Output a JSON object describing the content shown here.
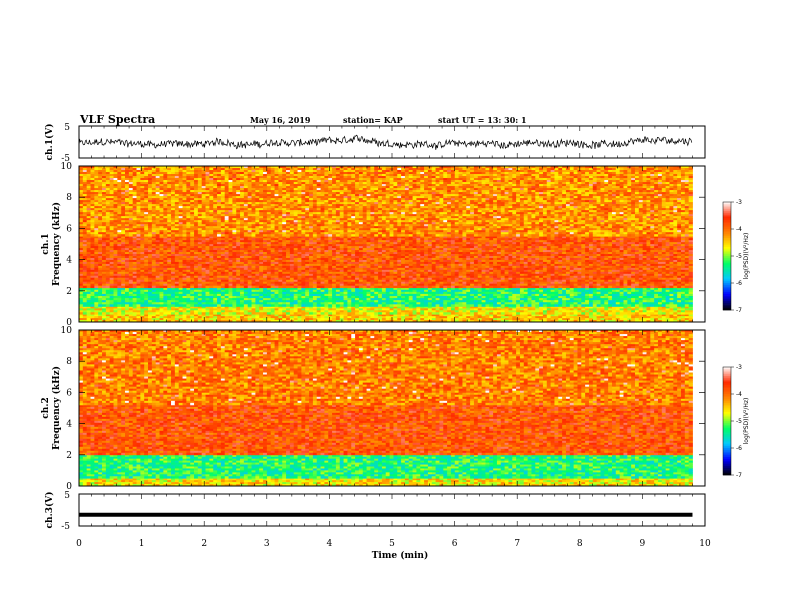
{
  "header": {
    "title": "VLF Spectra",
    "date": "May 16, 2019",
    "station": "station= KAP",
    "start": "start  UT =   13: 30: 1"
  },
  "colors": {
    "spectrogram_scale": [
      "#000000",
      "#0000ff",
      "#00c8ff",
      "#00ff66",
      "#ffff00",
      "#ff8000",
      "#ff2a00",
      "#ffffff"
    ],
    "waveform": "#000000"
  },
  "chart_data": [
    {
      "type": "line",
      "name": "ch1-waveform",
      "ylabel": "ch.1(V)",
      "ylim": [
        -5,
        5
      ],
      "yticks": [
        "5",
        "-5"
      ],
      "x_range_min": [
        0,
        9.8
      ],
      "description_values": "noisy waveform around approximately -0.5 V with amplitude about ±1.5 V"
    },
    {
      "type": "heatmap",
      "name": "ch1-spectrogram",
      "ylabel": [
        "ch.1",
        "Frequency  (kHz)"
      ],
      "ylim": [
        0,
        10
      ],
      "yticks": [
        "0",
        "2",
        "4",
        "6",
        "8",
        "10"
      ],
      "xlim": [
        0,
        10
      ],
      "x_data_end": 9.8,
      "bands": [
        {
          "from_khz": 0,
          "to_khz": 0.5,
          "log_psd": -4.5,
          "desc": "mixed"
        },
        {
          "from_khz": 0.5,
          "to_khz": 1.0,
          "log_psd": -4.7,
          "desc": "yellow-green"
        },
        {
          "from_khz": 1.0,
          "to_khz": 2.2,
          "log_psd": -5.3,
          "desc": "green-cyan"
        },
        {
          "from_khz": 2.2,
          "to_khz": 5.5,
          "log_psd": -3.8,
          "desc": "red"
        },
        {
          "from_khz": 5.5,
          "to_khz": 10.0,
          "log_psd": -4.2,
          "desc": "yellow-orange with vertical streaks"
        }
      ],
      "colorbar": {
        "label": "log(PSD)(V²/Hz)",
        "range": [
          -7,
          -3
        ],
        "ticks": [
          "-3",
          "-4",
          "-5",
          "-6",
          "-7"
        ]
      }
    },
    {
      "type": "heatmap",
      "name": "ch2-spectrogram",
      "ylabel": [
        "ch.2",
        "Frequency  (kHz)"
      ],
      "ylim": [
        0,
        10
      ],
      "yticks": [
        "0",
        "2",
        "4",
        "6",
        "8",
        "10"
      ],
      "xlim": [
        0,
        10
      ],
      "x_data_end": 9.8,
      "bands": [
        {
          "from_khz": 0,
          "to_khz": 0.5,
          "log_psd": -4.6,
          "desc": "mixed"
        },
        {
          "from_khz": 0.5,
          "to_khz": 2.0,
          "log_psd": -5.3,
          "desc": "green-cyan"
        },
        {
          "from_khz": 2.0,
          "to_khz": 5.2,
          "log_psd": -3.8,
          "desc": "red"
        },
        {
          "from_khz": 5.2,
          "to_khz": 10.0,
          "log_psd": -4.1,
          "desc": "yellow-orange with vertical streaks"
        }
      ],
      "colorbar": {
        "label": "log(PSD)(V²/Hz)",
        "range": [
          -7,
          -3
        ],
        "ticks": [
          "-3",
          "-4",
          "-5",
          "-6",
          "-7"
        ]
      }
    },
    {
      "type": "line",
      "name": "ch3-waveform",
      "ylabel": "ch.3(V)",
      "ylim": [
        -5,
        5
      ],
      "yticks": [
        "5",
        "-5"
      ],
      "constant_value": -1.5
    }
  ],
  "xaxis": {
    "label": "Time  (min)",
    "range": [
      0,
      10
    ],
    "ticks": [
      "0",
      "1",
      "2",
      "3",
      "4",
      "5",
      "6",
      "7",
      "8",
      "9",
      "10"
    ]
  }
}
